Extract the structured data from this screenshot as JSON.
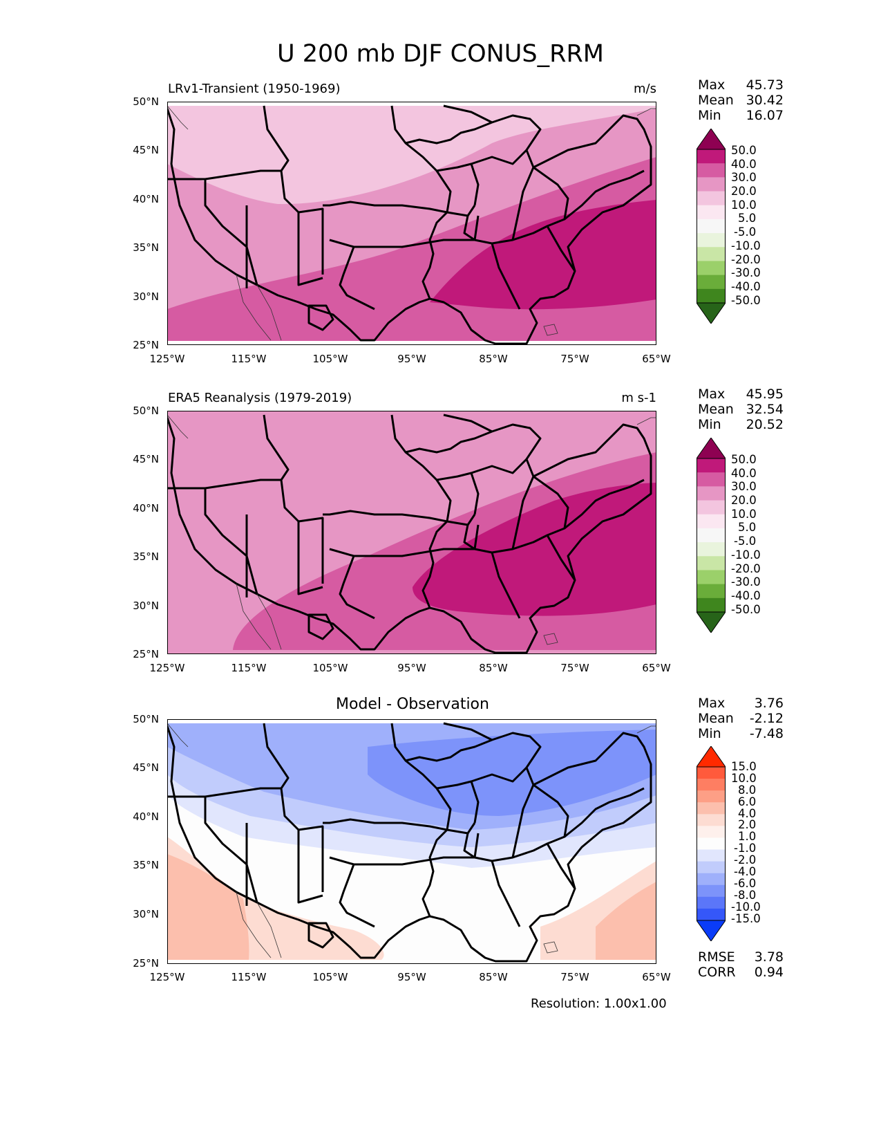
{
  "figure": {
    "title": "U 200 mb DJF CONUS_RRM",
    "resolution_text": "Resolution: 1.00x1.00"
  },
  "axes": {
    "lat_labels": [
      "50°N",
      "45°N",
      "40°N",
      "35°N",
      "30°N",
      "25°N"
    ],
    "lon_labels": [
      "125°W",
      "115°W",
      "105°W",
      "95°W",
      "85°W",
      "75°W",
      "65°W"
    ]
  },
  "panels": [
    {
      "title": "LRv1-Transient (1950-1969)",
      "units": "m/s",
      "stats": [
        {
          "label": "Max",
          "value": "45.73"
        },
        {
          "label": "Mean",
          "value": "30.42"
        },
        {
          "label": "Min",
          "value": "16.07"
        }
      ]
    },
    {
      "title": "ERA5 Reanalysis (1979-2019)",
      "units": "m s-1",
      "stats": [
        {
          "label": "Max",
          "value": "45.95"
        },
        {
          "label": "Mean",
          "value": "32.54"
        },
        {
          "label": "Min",
          "value": "20.52"
        }
      ]
    },
    {
      "title": "Model - Observation",
      "units": "",
      "stats": [
        {
          "label": "Max",
          "value": "3.76"
        },
        {
          "label": "Mean",
          "value": "-2.12"
        },
        {
          "label": "Min",
          "value": "-7.48"
        }
      ],
      "extra_stats": [
        {
          "label": "RMSE",
          "value": "3.78"
        },
        {
          "label": "CORR",
          "value": "0.94"
        }
      ]
    }
  ],
  "colorbars": {
    "field": {
      "labels": [
        "50.0",
        "40.0",
        "30.0",
        "20.0",
        "10.0",
        "5.0",
        "-5.0",
        "-10.0",
        "-20.0",
        "-30.0",
        "-40.0",
        "-50.0"
      ],
      "colors_top_to_bottom": [
        "#8e0152",
        "#c0197a",
        "#d65ba2",
        "#e696c4",
        "#f3c5df",
        "#fbe7f1",
        "#f7f7f7",
        "#e9f4dd",
        "#c9e6a6",
        "#9bd06a",
        "#6aad3a",
        "#3f861e",
        "#276419"
      ]
    },
    "diff": {
      "labels": [
        "15.0",
        "10.0",
        "8.0",
        "6.0",
        "4.0",
        "2.0",
        "1.0",
        "-1.0",
        "-2.0",
        "-4.0",
        "-6.0",
        "-8.0",
        "-10.0",
        "-15.0"
      ],
      "colors_top_to_bottom": [
        "#ff2a00",
        "#ff5a3c",
        "#fe7e62",
        "#fd9f86",
        "#fcbfad",
        "#fddcd2",
        "#fef0ec",
        "#fdfdfd",
        "#e1e6fd",
        "#c1ccfc",
        "#9fb0fb",
        "#7d93fa",
        "#5b76f9",
        "#3557f9",
        "#0a3cf8"
      ]
    }
  },
  "colors": {
    "land_outline": "#000000",
    "coast_outline": "#333333"
  }
}
